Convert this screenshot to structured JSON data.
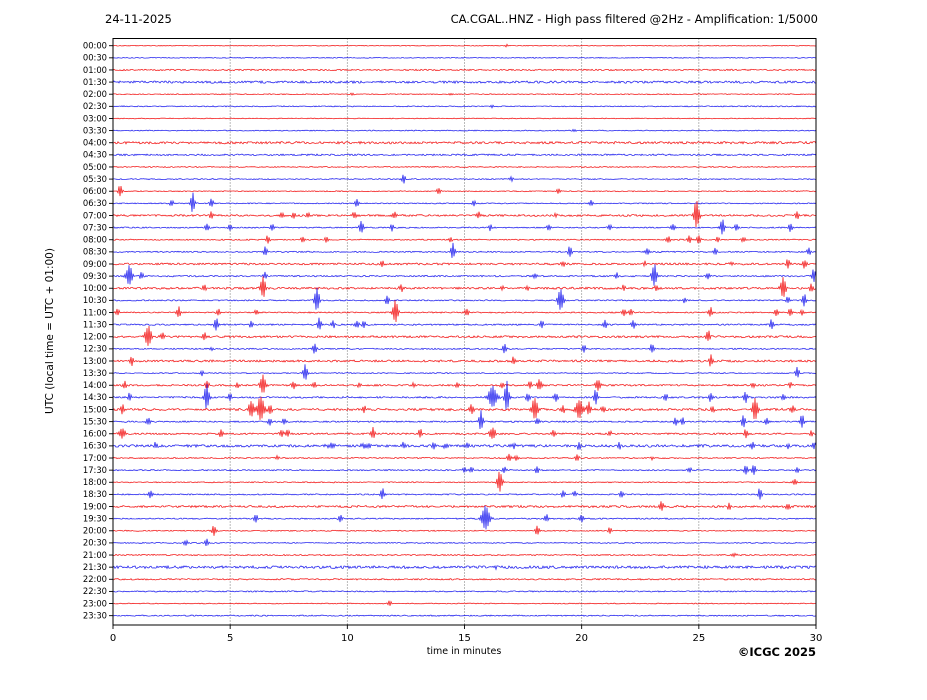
{
  "header": {
    "date": "24-11-2025",
    "title": "CA.CGAL..HNZ - High pass filtered @2Hz - Amplification: 1/5000"
  },
  "axes": {
    "xlabel": "time in minutes",
    "ylabel": "UTC (local time = UTC + 01:00)",
    "xticks": [
      0,
      5,
      10,
      15,
      20,
      25,
      30
    ],
    "gridlines": [
      5,
      10,
      15,
      20,
      25
    ],
    "x_range": [
      0,
      30
    ]
  },
  "footer": {
    "copyright": "©ICGC 2025"
  },
  "colors": {
    "red": "#f20c0c",
    "blue": "#1717ee",
    "grid": "#555555",
    "axis": "#000000"
  },
  "chart_data": {
    "type": "line",
    "subtype": "seismogram-helicorder",
    "title": "CA.CGAL..HNZ - High pass filtered @2Hz - Amplification: 1/5000",
    "xlabel": "time in minutes",
    "ylabel": "UTC (local time = UTC + 01:00)",
    "x_unit": "minutes",
    "xlim": [
      0,
      30
    ],
    "rows_note": "each row = 30 min trace; spikes = [minute, amplitude_px, width_factor(optional)]",
    "rows": [
      {
        "t": "00:00",
        "c": "red",
        "n": 0.35,
        "s": [
          [
            16.8,
            1.3
          ]
        ]
      },
      {
        "t": "00:30",
        "c": "blue",
        "n": 0.4,
        "s": []
      },
      {
        "t": "01:00",
        "c": "red",
        "n": 0.7,
        "s": []
      },
      {
        "t": "01:30",
        "c": "blue",
        "n": 1.1,
        "s": []
      },
      {
        "t": "02:00",
        "c": "red",
        "n": 0.45,
        "s": [
          [
            10.2,
            1.3
          ],
          [
            14.4,
            1.3
          ]
        ]
      },
      {
        "t": "02:30",
        "c": "blue",
        "n": 0.5,
        "s": [
          [
            16.2,
            1.4
          ]
        ]
      },
      {
        "t": "03:00",
        "c": "red",
        "n": 0.35,
        "s": []
      },
      {
        "t": "03:30",
        "c": "blue",
        "n": 0.45,
        "s": [
          [
            19.7,
            1.5
          ]
        ]
      },
      {
        "t": "04:00",
        "c": "red",
        "n": 1.1,
        "s": []
      },
      {
        "t": "04:30",
        "c": "blue",
        "n": 0.8,
        "s": []
      },
      {
        "t": "05:00",
        "c": "red",
        "n": 0.5,
        "s": []
      },
      {
        "t": "05:30",
        "c": "blue",
        "n": 0.5,
        "s": [
          [
            12.4,
            5
          ],
          [
            17.0,
            2.5
          ]
        ]
      },
      {
        "t": "06:00",
        "c": "red",
        "n": 0.45,
        "s": [
          [
            0.3,
            6
          ],
          [
            13.9,
            3.5
          ],
          [
            19.0,
            2.5
          ]
        ]
      },
      {
        "t": "06:30",
        "c": "blue",
        "n": 0.5,
        "s": [
          [
            2.5,
            3.5
          ],
          [
            3.4,
            11
          ],
          [
            4.2,
            4.5
          ],
          [
            10.4,
            4
          ],
          [
            15.4,
            3
          ],
          [
            20.4,
            3.5
          ]
        ]
      },
      {
        "t": "07:00",
        "c": "red",
        "n": 0.9,
        "s": [
          [
            4.2,
            4
          ],
          [
            7.2,
            3
          ],
          [
            7.7,
            3
          ],
          [
            8.3,
            3
          ],
          [
            10.3,
            4
          ],
          [
            12.0,
            4
          ],
          [
            15.6,
            3.5
          ],
          [
            18.9,
            2.5
          ],
          [
            24.9,
            15,
            1.4
          ],
          [
            29.2,
            4
          ]
        ]
      },
      {
        "t": "07:30",
        "c": "blue",
        "n": 0.6,
        "s": [
          [
            4.0,
            4
          ],
          [
            5.0,
            3.5
          ],
          [
            6.8,
            4
          ],
          [
            10.6,
            7
          ],
          [
            11.9,
            4
          ],
          [
            16.1,
            3.5
          ],
          [
            18.6,
            3
          ],
          [
            21.2,
            3
          ],
          [
            23.9,
            3.5
          ],
          [
            26.0,
            9
          ],
          [
            26.6,
            4
          ],
          [
            28.9,
            5
          ]
        ]
      },
      {
        "t": "08:00",
        "c": "red",
        "n": 0.55,
        "s": [
          [
            6.6,
            4
          ],
          [
            8.1,
            3
          ],
          [
            9.1,
            3
          ],
          [
            14.4,
            2.5
          ],
          [
            23.7,
            4
          ],
          [
            24.6,
            4
          ],
          [
            25.0,
            4.5
          ],
          [
            25.8,
            3
          ],
          [
            26.9,
            3
          ]
        ]
      },
      {
        "t": "08:30",
        "c": "blue",
        "n": 0.6,
        "s": [
          [
            6.5,
            5
          ],
          [
            14.5,
            9
          ],
          [
            19.5,
            6
          ],
          [
            22.8,
            3
          ],
          [
            25.7,
            3.5
          ],
          [
            29.7,
            4
          ]
        ]
      },
      {
        "t": "09:00",
        "c": "red",
        "n": 0.9,
        "s": [
          [
            11.5,
            3
          ],
          [
            19.2,
            3
          ],
          [
            22.7,
            3
          ],
          [
            26.4,
            2.5
          ],
          [
            28.8,
            5
          ],
          [
            29.5,
            5
          ]
        ]
      },
      {
        "t": "09:30",
        "c": "blue",
        "n": 0.7,
        "s": [
          [
            0.7,
            11,
            1.6
          ],
          [
            1.2,
            4
          ],
          [
            6.5,
            4
          ],
          [
            18.0,
            3
          ],
          [
            21.5,
            3
          ],
          [
            23.1,
            12,
            1.3
          ],
          [
            25.4,
            3.5
          ],
          [
            29.9,
            7
          ]
        ]
      },
      {
        "t": "10:00",
        "c": "red",
        "n": 1.0,
        "s": [
          [
            3.9,
            3
          ],
          [
            6.4,
            11,
            1.4
          ],
          [
            12.3,
            4
          ],
          [
            16.6,
            3
          ],
          [
            17.7,
            3
          ],
          [
            21.8,
            3
          ],
          [
            23.2,
            3
          ],
          [
            28.6,
            12,
            1.3
          ],
          [
            29.8,
            4
          ]
        ]
      },
      {
        "t": "10:30",
        "c": "blue",
        "n": 0.6,
        "s": [
          [
            8.7,
            12,
            1.3
          ],
          [
            11.7,
            5
          ],
          [
            19.1,
            12,
            1.5
          ],
          [
            24.4,
            3
          ],
          [
            28.8,
            3.5
          ],
          [
            29.5,
            7
          ]
        ]
      },
      {
        "t": "11:00",
        "c": "red",
        "n": 0.6,
        "s": [
          [
            0.2,
            4
          ],
          [
            2.8,
            6
          ],
          [
            4.5,
            4
          ],
          [
            6.1,
            3
          ],
          [
            12.05,
            12,
            1.3
          ],
          [
            15.1,
            4
          ],
          [
            21.8,
            4
          ],
          [
            22.1,
            3
          ],
          [
            25.5,
            5
          ],
          [
            28.3,
            4
          ],
          [
            28.9,
            4
          ],
          [
            29.4,
            3
          ]
        ]
      },
      {
        "t": "11:30",
        "c": "blue",
        "n": 0.7,
        "s": [
          [
            4.4,
            7
          ],
          [
            5.9,
            4
          ],
          [
            8.8,
            7
          ],
          [
            9.4,
            4
          ],
          [
            10.4,
            4
          ],
          [
            10.7,
            4
          ],
          [
            18.3,
            4
          ],
          [
            21.0,
            5
          ],
          [
            22.2,
            5
          ],
          [
            28.1,
            5
          ]
        ]
      },
      {
        "t": "12:00",
        "c": "red",
        "n": 1.0,
        "s": [
          [
            1.5,
            11,
            1.6
          ],
          [
            2.1,
            4
          ],
          [
            3.9,
            4
          ],
          [
            25.4,
            6
          ]
        ]
      },
      {
        "t": "12:30",
        "c": "blue",
        "n": 0.6,
        "s": [
          [
            4.2,
            2
          ],
          [
            8.6,
            6
          ],
          [
            16.7,
            5
          ],
          [
            20.1,
            4
          ],
          [
            23.0,
            5
          ]
        ]
      },
      {
        "t": "13:00",
        "c": "red",
        "n": 1.0,
        "s": [
          [
            0.8,
            5
          ],
          [
            17.1,
            4
          ],
          [
            25.5,
            6
          ]
        ]
      },
      {
        "t": "13:30",
        "c": "blue",
        "n": 0.5,
        "s": [
          [
            3.8,
            3
          ],
          [
            8.2,
            9
          ],
          [
            29.2,
            6
          ]
        ]
      },
      {
        "t": "14:00",
        "c": "red",
        "n": 0.8,
        "s": [
          [
            0.5,
            4
          ],
          [
            4.0,
            5
          ],
          [
            5.3,
            3
          ],
          [
            6.4,
            11,
            1.4
          ],
          [
            7.7,
            4
          ],
          [
            8.6,
            3
          ],
          [
            10.5,
            2
          ],
          [
            12.8,
            2
          ],
          [
            14.7,
            3
          ],
          [
            16.6,
            3
          ],
          [
            17.8,
            4
          ],
          [
            18.2,
            6,
            1.5
          ],
          [
            20.7,
            6,
            1.5
          ],
          [
            27.3,
            3
          ],
          [
            28.9,
            3
          ]
        ]
      },
      {
        "t": "14:30",
        "c": "blue",
        "n": 0.8,
        "s": [
          [
            0.7,
            4
          ],
          [
            4.0,
            14,
            1.2
          ],
          [
            5.0,
            4
          ],
          [
            16.2,
            11,
            2.2
          ],
          [
            16.8,
            17,
            1.1
          ],
          [
            17.7,
            5
          ],
          [
            18.9,
            5
          ],
          [
            20.6,
            8
          ],
          [
            23.6,
            4
          ],
          [
            25.5,
            5
          ],
          [
            27.0,
            6
          ],
          [
            28.6,
            4
          ]
        ]
      },
      {
        "t": "15:00",
        "c": "red",
        "n": 1.1,
        "s": [
          [
            0.4,
            6
          ],
          [
            5.9,
            8,
            1.5
          ],
          [
            6.3,
            13,
            1.8
          ],
          [
            6.7,
            6
          ],
          [
            10.7,
            4
          ],
          [
            14.4,
            2
          ],
          [
            15.3,
            5
          ],
          [
            18.0,
            12,
            1.5
          ],
          [
            19.2,
            5
          ],
          [
            19.9,
            10,
            2.0
          ],
          [
            20.3,
            7
          ],
          [
            20.9,
            4
          ],
          [
            25.6,
            3
          ],
          [
            27.4,
            12,
            1.4
          ],
          [
            29.0,
            3
          ]
        ]
      },
      {
        "t": "15:30",
        "c": "blue",
        "n": 0.7,
        "s": [
          [
            1.5,
            4
          ],
          [
            6.7,
            4
          ],
          [
            7.3,
            4
          ],
          [
            15.7,
            11
          ],
          [
            18.1,
            4
          ],
          [
            24.0,
            4.5
          ],
          [
            24.3,
            4
          ],
          [
            26.9,
            7
          ],
          [
            27.9,
            4
          ],
          [
            29.4,
            7
          ]
        ]
      },
      {
        "t": "16:00",
        "c": "red",
        "n": 0.8,
        "s": [
          [
            0.4,
            5,
            1.6
          ],
          [
            4.6,
            4
          ],
          [
            7.2,
            4
          ],
          [
            7.45,
            4
          ],
          [
            11.1,
            6
          ],
          [
            13.1,
            5
          ],
          [
            16.2,
            6,
            1.6
          ],
          [
            18.8,
            4
          ],
          [
            21.2,
            3
          ],
          [
            27.0,
            5
          ],
          [
            29.8,
            3
          ]
        ]
      },
      {
        "t": "16:30",
        "c": "blue",
        "n": 1.2,
        "s": [
          [
            1.8,
            4
          ],
          [
            9.3,
            2.5,
            2.5
          ],
          [
            10.8,
            2.5,
            2.5
          ],
          [
            12.4,
            4
          ],
          [
            13.7,
            3
          ],
          [
            14.2,
            3
          ],
          [
            15.1,
            3
          ],
          [
            17.1,
            3
          ],
          [
            19.9,
            5
          ],
          [
            21.6,
            4
          ],
          [
            27.3,
            5
          ],
          [
            28.8,
            3
          ],
          [
            29.9,
            4
          ]
        ]
      },
      {
        "t": "17:00",
        "c": "red",
        "n": 0.6,
        "s": [
          [
            7.0,
            2
          ],
          [
            16.9,
            4
          ],
          [
            17.2,
            3
          ],
          [
            19.8,
            4
          ],
          [
            23.0,
            2
          ]
        ]
      },
      {
        "t": "17:30",
        "c": "blue",
        "n": 0.6,
        "s": [
          [
            15.0,
            3
          ],
          [
            15.3,
            3
          ],
          [
            16.7,
            3
          ],
          [
            18.1,
            4
          ],
          [
            24.6,
            3
          ],
          [
            27.0,
            5
          ],
          [
            27.35,
            6
          ],
          [
            29.2,
            3
          ]
        ]
      },
      {
        "t": "18:00",
        "c": "red",
        "n": 0.5,
        "s": [
          [
            16.5,
            11,
            1.3
          ],
          [
            29.1,
            3
          ]
        ]
      },
      {
        "t": "18:30",
        "c": "blue",
        "n": 0.6,
        "s": [
          [
            1.6,
            4
          ],
          [
            11.5,
            6
          ],
          [
            19.2,
            4
          ],
          [
            19.7,
            3
          ],
          [
            21.7,
            4
          ],
          [
            27.6,
            6
          ]
        ]
      },
      {
        "t": "19:00",
        "c": "red",
        "n": 1.0,
        "s": [
          [
            23.4,
            6
          ],
          [
            26.3,
            4
          ],
          [
            28.8,
            4
          ]
        ]
      },
      {
        "t": "19:30",
        "c": "blue",
        "n": 0.6,
        "s": [
          [
            6.1,
            4
          ],
          [
            9.7,
            4
          ],
          [
            15.9,
            13,
            2.0
          ],
          [
            18.5,
            4
          ],
          [
            20.0,
            4
          ]
        ]
      },
      {
        "t": "20:00",
        "c": "red",
        "n": 0.5,
        "s": [
          [
            4.3,
            6
          ],
          [
            18.1,
            5
          ],
          [
            21.2,
            4
          ]
        ]
      },
      {
        "t": "20:30",
        "c": "blue",
        "n": 0.5,
        "s": [
          [
            3.1,
            3
          ],
          [
            4.0,
            4
          ]
        ]
      },
      {
        "t": "21:00",
        "c": "red",
        "n": 0.6,
        "s": [
          [
            26.5,
            1.5,
            2
          ]
        ]
      },
      {
        "t": "21:30",
        "c": "blue",
        "n": 1.3,
        "s": [
          [
            16.3,
            2
          ]
        ]
      },
      {
        "t": "22:00",
        "c": "red",
        "n": 0.7,
        "s": []
      },
      {
        "t": "22:30",
        "c": "blue",
        "n": 0.6,
        "s": []
      },
      {
        "t": "23:00",
        "c": "red",
        "n": 0.4,
        "s": [
          [
            11.8,
            3
          ]
        ]
      },
      {
        "t": "23:30",
        "c": "blue",
        "n": 0.55,
        "s": []
      }
    ]
  }
}
